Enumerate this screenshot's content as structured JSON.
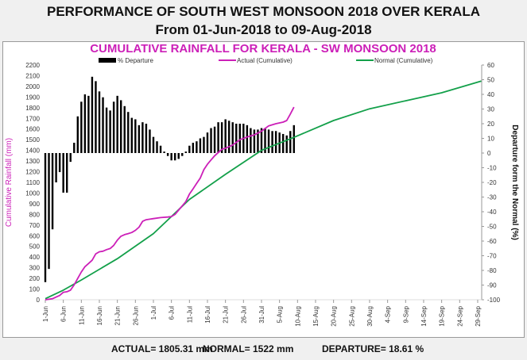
{
  "header": {
    "title": "PERFORMANCE OF SOUTH WEST MONSOON 2018 OVER KERALA",
    "subtitle": "From 01-Jun-2018 to 09-Aug-2018"
  },
  "footer": {
    "actual": "ACTUAL= 1805.31 mm",
    "normal": "NORMAL= 1522 mm",
    "departure": "DEPARTURE= 18.61 %"
  },
  "chart_data": {
    "type": "bar+line",
    "title": "CUMULATIVE RAINFALL FOR KERALA - SW MONSOON 2018",
    "ylabel": "Cumulative Rainfall (mm)",
    "y2label": "Departure form the Normal (%)",
    "ylim": [
      0,
      2200
    ],
    "y2lim": [
      -100,
      60
    ],
    "yticks": [
      "0",
      "100",
      "200",
      "300",
      "400",
      "500",
      "600",
      "700",
      "800",
      "900",
      "1000",
      "1100",
      "1200",
      "1300",
      "1400",
      "1500",
      "1600",
      "1700",
      "1800",
      "1900",
      "2000",
      "2100",
      "2200"
    ],
    "y2ticks": [
      "-100",
      "-90",
      "-80",
      "-70",
      "-60",
      "-50",
      "-40",
      "-30",
      "-20",
      "-10",
      "0",
      "10",
      "20",
      "30",
      "40",
      "50",
      "60"
    ],
    "xticks": [
      "1-Jun",
      "6-Jun",
      "11-Jun",
      "16-Jun",
      "21-Jun",
      "26-Jun",
      "1-Jul",
      "6-Jul",
      "11-Jul",
      "16-Jul",
      "21-Jul",
      "26-Jul",
      "31-Jul",
      "5-Aug",
      "10-Aug",
      "15-Aug",
      "20-Aug",
      "25-Aug",
      "30-Aug",
      "4-Sep",
      "9-Sep",
      "14-Sep",
      "19-Sep",
      "24-Sep",
      "29-Sep"
    ],
    "legend": [
      "% Departure",
      "Actual (Cumulative)",
      "Normal (Cumulative)"
    ],
    "colors": {
      "departure": "#000000",
      "actual": "#cc1fb8",
      "normal": "#13a04a"
    },
    "departure_pct": [
      -88,
      -79,
      -52,
      -20,
      -13,
      -27,
      -27,
      -6,
      7,
      25,
      35,
      40,
      39,
      52,
      49,
      42,
      38,
      31,
      29,
      35,
      39,
      36,
      32,
      28,
      24,
      23,
      19,
      21,
      20,
      16,
      11,
      8,
      5,
      1,
      -2,
      -5,
      -5,
      -4,
      -2,
      1,
      5,
      7,
      8,
      10,
      11,
      14,
      17,
      18,
      21,
      21,
      23,
      22,
      21,
      20,
      20,
      20,
      19,
      17,
      16,
      16,
      17,
      17,
      16,
      15,
      15,
      14,
      13,
      12,
      15,
      19
    ],
    "actual_cumulative": {
      "day": [
        0,
        2,
        4,
        5,
        6,
        7,
        8,
        9,
        10,
        11,
        12,
        13,
        14,
        15,
        16,
        17,
        18,
        19,
        20,
        21,
        22,
        23,
        24,
        25,
        26,
        27,
        28,
        29,
        30,
        32,
        34,
        35,
        36,
        37,
        38,
        39,
        40,
        41,
        42,
        43,
        44,
        45,
        46,
        47,
        48,
        49,
        50,
        52,
        54,
        56,
        58,
        60,
        62,
        64,
        66,
        67,
        68,
        69
      ],
      "mm": [
        0,
        10,
        40,
        70,
        75,
        90,
        140,
        200,
        260,
        310,
        340,
        370,
        430,
        450,
        455,
        470,
        480,
        510,
        560,
        595,
        610,
        620,
        630,
        650,
        680,
        735,
        750,
        755,
        760,
        770,
        775,
        780,
        800,
        840,
        880,
        920,
        990,
        1040,
        1090,
        1140,
        1220,
        1270,
        1310,
        1350,
        1380,
        1410,
        1420,
        1450,
        1500,
        1525,
        1545,
        1580,
        1630,
        1650,
        1665,
        1680,
        1740,
        1805
      ]
    },
    "normal_cumulative": {
      "day": [
        0,
        5,
        10,
        20,
        30,
        40,
        50,
        60,
        69,
        80,
        90,
        100,
        110,
        121
      ],
      "mm": [
        10,
        90,
        185,
        385,
        620,
        940,
        1175,
        1400,
        1522,
        1680,
        1790,
        1865,
        1940,
        2050
      ]
    }
  }
}
